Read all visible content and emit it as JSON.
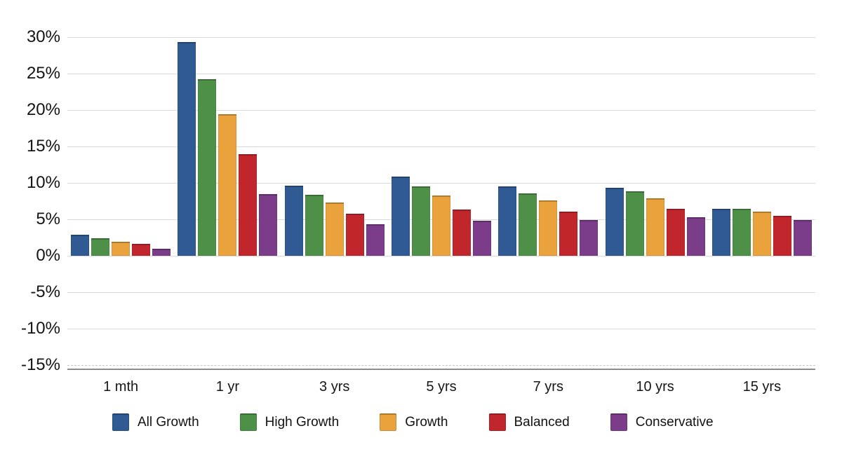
{
  "chart_data": {
    "type": "bar",
    "title": "",
    "categories": [
      "1 mth",
      "1 yr",
      "3 yrs",
      "5 yrs",
      "7 yrs",
      "10 yrs",
      "15 yrs"
    ],
    "series": [
      {
        "name": "All Growth",
        "color": "#2F5A93",
        "values": [
          2.9,
          29.3,
          9.6,
          10.9,
          9.5,
          9.3,
          6.4
        ]
      },
      {
        "name": "High Growth",
        "color": "#4F9048",
        "values": [
          2.4,
          24.2,
          8.4,
          9.5,
          8.6,
          8.8,
          6.4
        ]
      },
      {
        "name": "Growth",
        "color": "#E9A23C",
        "values": [
          1.9,
          19.4,
          7.3,
          8.3,
          7.6,
          7.9,
          6.1
        ]
      },
      {
        "name": "Balanced",
        "color": "#C1262D",
        "values": [
          1.6,
          13.9,
          5.8,
          6.3,
          6.1,
          6.4,
          5.5
        ]
      },
      {
        "name": "Conservative",
        "color": "#7B3D89",
        "values": [
          1.0,
          8.5,
          4.3,
          4.8,
          4.9,
          5.3,
          4.9
        ]
      }
    ],
    "ylim": [
      -15,
      30
    ],
    "ytick_step": 5,
    "ytick_labels": [
      "30%",
      "25%",
      "20%",
      "15%",
      "10%",
      "5%",
      "0%",
      "-5%",
      "-10%",
      "-15%"
    ],
    "grid": true,
    "gridline_color": "#d9d9d9",
    "axis_line_color": "#8d8d8d",
    "legend_position": "bottom"
  }
}
